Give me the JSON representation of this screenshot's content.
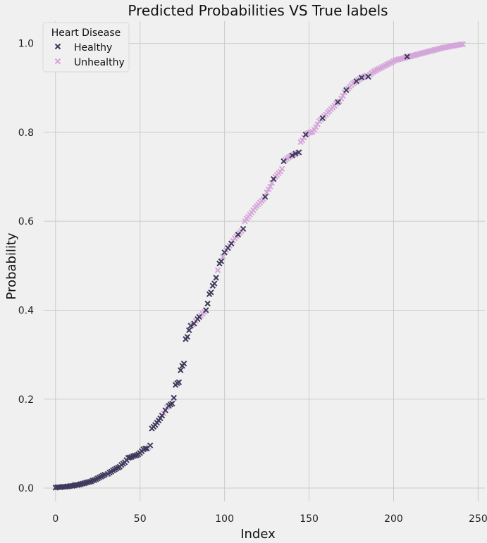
{
  "chart_data": {
    "type": "scatter",
    "title": "Predicted Probabilities VS True labels",
    "xlabel": "Index",
    "ylabel": "Probability",
    "xlim": [
      -7,
      254
    ],
    "ylim": [
      -0.03,
      1.05
    ],
    "xticks": [
      0,
      50,
      100,
      150,
      200,
      250
    ],
    "yticks": [
      0.0,
      0.2,
      0.4,
      0.6,
      0.8,
      1.0
    ],
    "grid": true,
    "marker": "x",
    "legend": {
      "title": "Heart Disease",
      "placement": "top-left"
    },
    "series": [
      {
        "name": "Healthy",
        "color": "#3f3a5c",
        "points": [
          [
            0,
            0.001
          ],
          [
            1,
            0.002
          ],
          [
            2,
            0.002
          ],
          [
            3,
            0.002
          ],
          [
            4,
            0.003
          ],
          [
            5,
            0.003
          ],
          [
            6,
            0.003
          ],
          [
            7,
            0.004
          ],
          [
            8,
            0.004
          ],
          [
            9,
            0.005
          ],
          [
            10,
            0.005
          ],
          [
            11,
            0.006
          ],
          [
            12,
            0.007
          ],
          [
            13,
            0.007
          ],
          [
            14,
            0.008
          ],
          [
            15,
            0.009
          ],
          [
            16,
            0.01
          ],
          [
            17,
            0.011
          ],
          [
            18,
            0.012
          ],
          [
            19,
            0.013
          ],
          [
            20,
            0.014
          ],
          [
            21,
            0.015
          ],
          [
            22,
            0.017
          ],
          [
            23,
            0.018
          ],
          [
            24,
            0.02
          ],
          [
            25,
            0.022
          ],
          [
            26,
            0.024
          ],
          [
            27,
            0.026
          ],
          [
            28,
            0.028
          ],
          [
            29,
            0.03
          ],
          [
            31,
            0.032
          ],
          [
            32,
            0.035
          ],
          [
            33,
            0.037
          ],
          [
            34,
            0.04
          ],
          [
            35,
            0.042
          ],
          [
            36,
            0.044
          ],
          [
            37,
            0.046
          ],
          [
            38,
            0.048
          ],
          [
            39,
            0.052
          ],
          [
            40,
            0.055
          ],
          [
            41,
            0.058
          ],
          [
            42,
            0.063
          ],
          [
            43,
            0.068
          ],
          [
            44,
            0.069
          ],
          [
            45,
            0.07
          ],
          [
            46,
            0.072
          ],
          [
            47,
            0.073
          ],
          [
            48,
            0.074
          ],
          [
            49,
            0.076
          ],
          [
            50,
            0.079
          ],
          [
            51,
            0.083
          ],
          [
            52,
            0.087
          ],
          [
            53,
            0.089
          ],
          [
            54,
            0.089
          ],
          [
            56,
            0.096
          ],
          [
            57,
            0.134
          ],
          [
            58,
            0.138
          ],
          [
            59,
            0.142
          ],
          [
            60,
            0.147
          ],
          [
            61,
            0.152
          ],
          [
            62,
            0.157
          ],
          [
            63,
            0.163
          ],
          [
            65,
            0.175
          ],
          [
            67,
            0.185
          ],
          [
            68,
            0.188
          ],
          [
            69,
            0.19
          ],
          [
            70,
            0.203
          ],
          [
            71,
            0.232
          ],
          [
            72,
            0.236
          ],
          [
            73,
            0.238
          ],
          [
            74,
            0.265
          ],
          [
            75,
            0.275
          ],
          [
            76,
            0.28
          ],
          [
            77,
            0.335
          ],
          [
            78,
            0.34
          ],
          [
            79,
            0.355
          ],
          [
            80,
            0.365
          ],
          [
            82,
            0.37
          ],
          [
            84,
            0.38
          ],
          [
            85,
            0.385
          ],
          [
            89,
            0.4
          ],
          [
            90,
            0.415
          ],
          [
            91,
            0.436
          ],
          [
            92,
            0.44
          ],
          [
            93,
            0.455
          ],
          [
            94,
            0.46
          ],
          [
            95,
            0.473
          ],
          [
            97,
            0.505
          ],
          [
            98,
            0.51
          ],
          [
            100,
            0.53
          ],
          [
            102,
            0.54
          ],
          [
            104,
            0.55
          ],
          [
            108,
            0.57
          ],
          [
            111,
            0.583
          ],
          [
            124,
            0.655
          ],
          [
            129,
            0.695
          ],
          [
            135,
            0.735
          ],
          [
            140,
            0.748
          ],
          [
            142,
            0.752
          ],
          [
            144,
            0.755
          ],
          [
            148,
            0.795
          ],
          [
            158,
            0.832
          ],
          [
            167,
            0.868
          ],
          [
            172,
            0.895
          ],
          [
            178,
            0.915
          ],
          [
            181,
            0.923
          ],
          [
            185,
            0.925
          ],
          [
            208,
            0.97
          ]
        ]
      },
      {
        "name": "Unhealthy",
        "color": "#d5a6d9",
        "points": [
          [
            30,
            0.031
          ],
          [
            55,
            0.092
          ],
          [
            64,
            0.168
          ],
          [
            66,
            0.182
          ],
          [
            81,
            0.368
          ],
          [
            83,
            0.376
          ],
          [
            86,
            0.388
          ],
          [
            87,
            0.392
          ],
          [
            88,
            0.396
          ],
          [
            96,
            0.49
          ],
          [
            99,
            0.52
          ],
          [
            101,
            0.535
          ],
          [
            103,
            0.545
          ],
          [
            105,
            0.556
          ],
          [
            106,
            0.562
          ],
          [
            107,
            0.566
          ],
          [
            109,
            0.574
          ],
          [
            110,
            0.578
          ],
          [
            112,
            0.6
          ],
          [
            113,
            0.606
          ],
          [
            114,
            0.61
          ],
          [
            115,
            0.615
          ],
          [
            116,
            0.62
          ],
          [
            117,
            0.625
          ],
          [
            118,
            0.63
          ],
          [
            119,
            0.634
          ],
          [
            120,
            0.638
          ],
          [
            121,
            0.642
          ],
          [
            122,
            0.646
          ],
          [
            123,
            0.65
          ],
          [
            125,
            0.665
          ],
          [
            126,
            0.672
          ],
          [
            127,
            0.678
          ],
          [
            128,
            0.686
          ],
          [
            130,
            0.7
          ],
          [
            131,
            0.704
          ],
          [
            132,
            0.708
          ],
          [
            133,
            0.712
          ],
          [
            134,
            0.718
          ],
          [
            136,
            0.738
          ],
          [
            137,
            0.741
          ],
          [
            138,
            0.744
          ],
          [
            139,
            0.746
          ],
          [
            141,
            0.75
          ],
          [
            143,
            0.754
          ],
          [
            145,
            0.778
          ],
          [
            146,
            0.782
          ],
          [
            147,
            0.788
          ],
          [
            149,
            0.797
          ],
          [
            150,
            0.799
          ],
          [
            151,
            0.8
          ],
          [
            152,
            0.801
          ],
          [
            153,
            0.806
          ],
          [
            154,
            0.812
          ],
          [
            155,
            0.818
          ],
          [
            156,
            0.825
          ],
          [
            157,
            0.829
          ],
          [
            159,
            0.836
          ],
          [
            160,
            0.84
          ],
          [
            161,
            0.845
          ],
          [
            162,
            0.848
          ],
          [
            163,
            0.852
          ],
          [
            164,
            0.856
          ],
          [
            165,
            0.86
          ],
          [
            166,
            0.865
          ],
          [
            168,
            0.87
          ],
          [
            169,
            0.876
          ],
          [
            170,
            0.882
          ],
          [
            171,
            0.89
          ],
          [
            173,
            0.898
          ],
          [
            174,
            0.902
          ],
          [
            175,
            0.906
          ],
          [
            176,
            0.91
          ],
          [
            177,
            0.912
          ],
          [
            179,
            0.918
          ],
          [
            180,
            0.92
          ],
          [
            182,
            0.924
          ],
          [
            183,
            0.926
          ],
          [
            184,
            0.928
          ],
          [
            186,
            0.93
          ],
          [
            187,
            0.933
          ],
          [
            188,
            0.936
          ],
          [
            189,
            0.938
          ],
          [
            190,
            0.94
          ],
          [
            191,
            0.942
          ],
          [
            192,
            0.944
          ],
          [
            193,
            0.946
          ],
          [
            194,
            0.948
          ],
          [
            195,
            0.95
          ],
          [
            196,
            0.952
          ],
          [
            197,
            0.954
          ],
          [
            198,
            0.956
          ],
          [
            199,
            0.958
          ],
          [
            200,
            0.96
          ],
          [
            201,
            0.962
          ],
          [
            202,
            0.963
          ],
          [
            203,
            0.964
          ],
          [
            204,
            0.965
          ],
          [
            205,
            0.966
          ],
          [
            206,
            0.967
          ],
          [
            207,
            0.968
          ],
          [
            209,
            0.97
          ],
          [
            210,
            0.971
          ],
          [
            211,
            0.972
          ],
          [
            212,
            0.973
          ],
          [
            213,
            0.974
          ],
          [
            214,
            0.975
          ],
          [
            215,
            0.976
          ],
          [
            216,
            0.977
          ],
          [
            217,
            0.978
          ],
          [
            218,
            0.979
          ],
          [
            219,
            0.98
          ],
          [
            220,
            0.981
          ],
          [
            221,
            0.982
          ],
          [
            222,
            0.983
          ],
          [
            223,
            0.984
          ],
          [
            224,
            0.985
          ],
          [
            225,
            0.986
          ],
          [
            226,
            0.987
          ],
          [
            227,
            0.988
          ],
          [
            228,
            0.989
          ],
          [
            229,
            0.99
          ],
          [
            230,
            0.991
          ],
          [
            231,
            0.991
          ],
          [
            232,
            0.992
          ],
          [
            233,
            0.993
          ],
          [
            234,
            0.994
          ],
          [
            235,
            0.994
          ],
          [
            236,
            0.995
          ],
          [
            237,
            0.996
          ],
          [
            238,
            0.996
          ],
          [
            239,
            0.997
          ],
          [
            240,
            0.998
          ],
          [
            241,
            0.998
          ]
        ]
      }
    ]
  }
}
